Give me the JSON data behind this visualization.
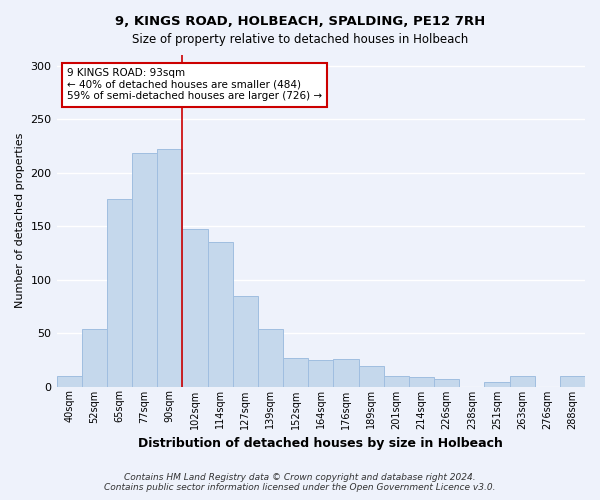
{
  "title": "9, KINGS ROAD, HOLBEACH, SPALDING, PE12 7RH",
  "subtitle": "Size of property relative to detached houses in Holbeach",
  "xlabel": "Distribution of detached houses by size in Holbeach",
  "ylabel": "Number of detached properties",
  "bar_labels": [
    "40sqm",
    "52sqm",
    "65sqm",
    "77sqm",
    "90sqm",
    "102sqm",
    "114sqm",
    "127sqm",
    "139sqm",
    "152sqm",
    "164sqm",
    "176sqm",
    "189sqm",
    "201sqm",
    "214sqm",
    "226sqm",
    "238sqm",
    "251sqm",
    "263sqm",
    "276sqm",
    "288sqm"
  ],
  "bar_values": [
    10,
    54,
    175,
    218,
    222,
    147,
    135,
    85,
    54,
    27,
    25,
    26,
    19,
    10,
    9,
    7,
    0,
    4,
    10,
    0,
    10
  ],
  "bar_color": "#c5d8ec",
  "bar_edge_color": "#a0bee0",
  "marker_line_color": "#cc0000",
  "annotation_text": "9 KINGS ROAD: 93sqm\n← 40% of detached houses are smaller (484)\n59% of semi-detached houses are larger (726) →",
  "annotation_box_facecolor": "#ffffff",
  "annotation_box_edgecolor": "#cc0000",
  "ylim": [
    0,
    310
  ],
  "yticks": [
    0,
    50,
    100,
    150,
    200,
    250,
    300
  ],
  "footer1": "Contains HM Land Registry data © Crown copyright and database right 2024.",
  "footer2": "Contains public sector information licensed under the Open Government Licence v3.0.",
  "background_color": "#eef2fb",
  "grid_color": "#ffffff"
}
